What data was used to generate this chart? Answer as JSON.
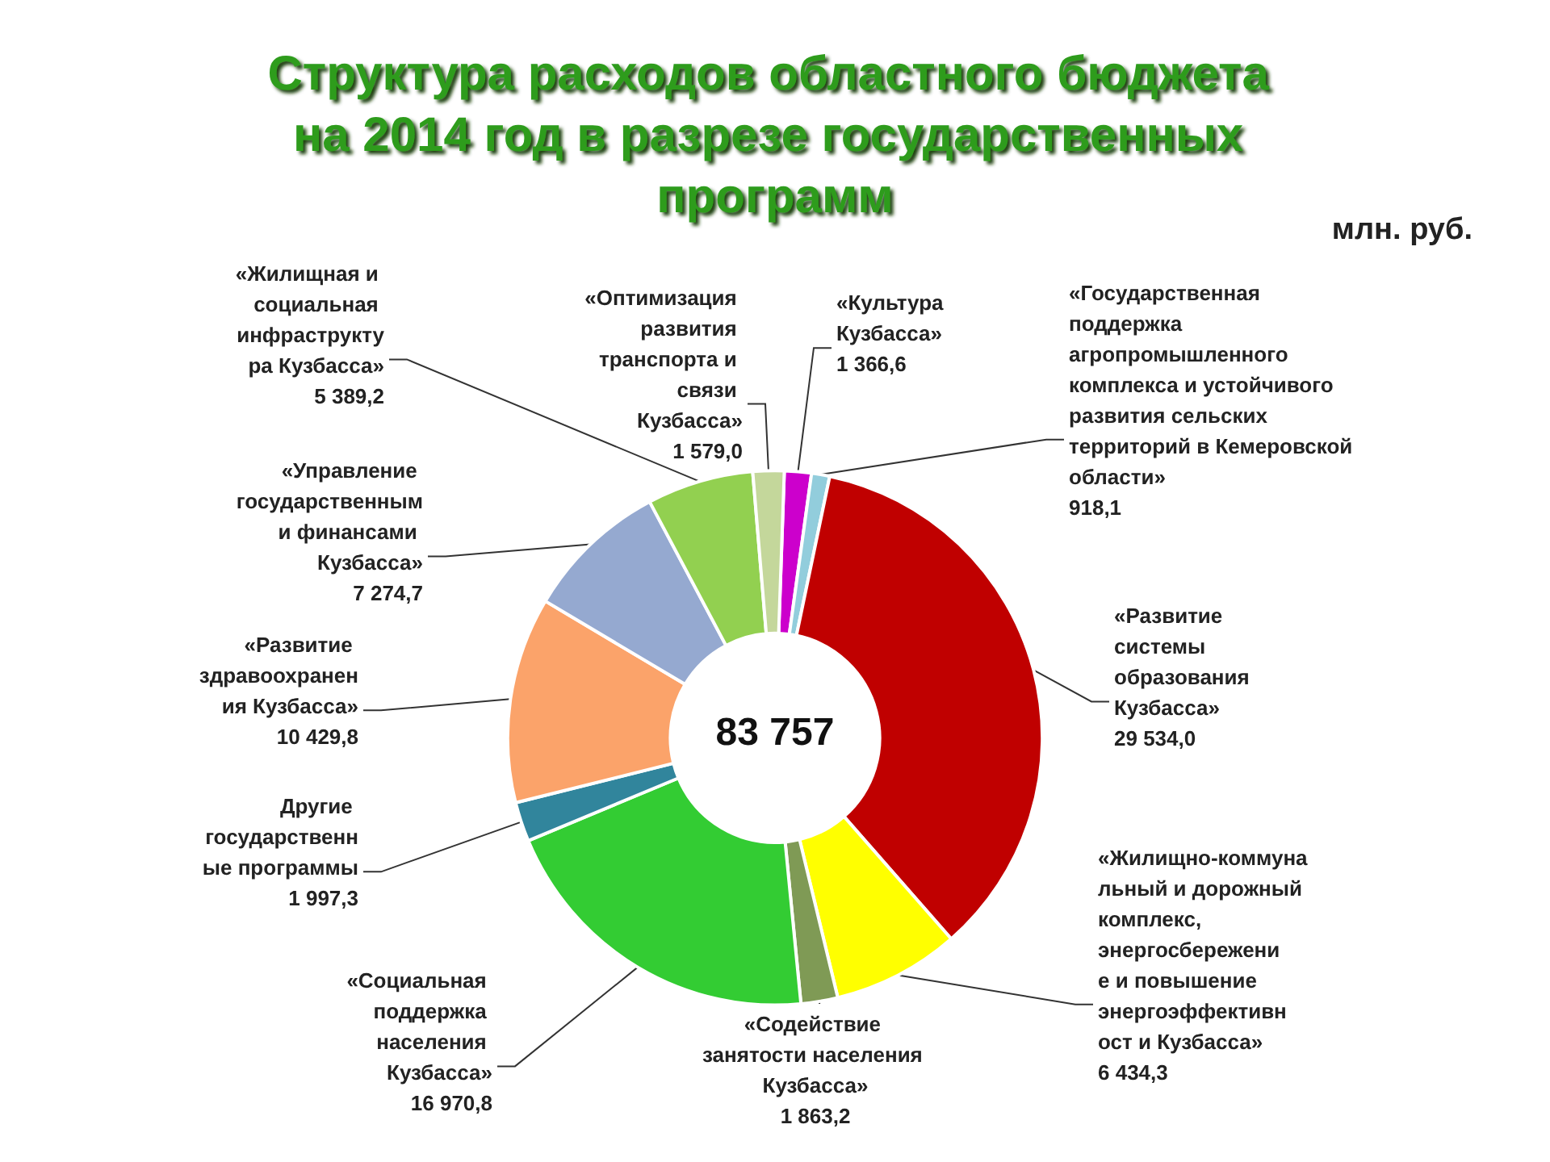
{
  "chart_data": {
    "type": "donut",
    "title": "Структура расходов областного бюджета на 2014 год в разрезе государственных программ",
    "categories": [
      "«Культура Кузбасса»",
      "«Государственная поддержка агропромышленного комплекса и устойчивого развития сельских территорий в Кемеровской области»",
      "«Развитие системы образования Кузбасса»",
      "«Жилищно-коммунальный и дорожный комплекс, энергосбережение и повышение энергоэффективност и Кузбасса»",
      "«Содействие занятости населения Кузбасса»",
      "«Социальная поддержка населения Кузбасса»",
      "Другие государственные программы",
      "«Развитие здравоохранения Кузбасса»",
      "«Управление государственными финансами Кузбасса»",
      "«Жилищная и социальная инфраструктура Кузбасса»",
      "«Оптимизация развития транспорта и связи Кузбасса»"
    ],
    "values": [
      1366.6,
      918.1,
      29534.0,
      6434.3,
      1863.2,
      16970.8,
      1997.3,
      10429.8,
      7274.7,
      5389.2,
      1579.0
    ],
    "value_labels": [
      "1 366,6",
      "918,1",
      "29 534,0",
      "6 434,3",
      "1 863,2",
      "16 970,8",
      "1 997,3",
      "10 429,8",
      "7 274,7",
      "5 389,2",
      "1 579,0"
    ],
    "colors": [
      "#cc00cc",
      "#92cddc",
      "#c00000",
      "#ffff00",
      "#7f9a55",
      "#33cc33",
      "#31859c",
      "#fba36a",
      "#95a9d0",
      "#92d050",
      "#c4d79b"
    ],
    "annotations": [
      "83 757",
      "млн. руб."
    ],
    "legend": false
  }
}
